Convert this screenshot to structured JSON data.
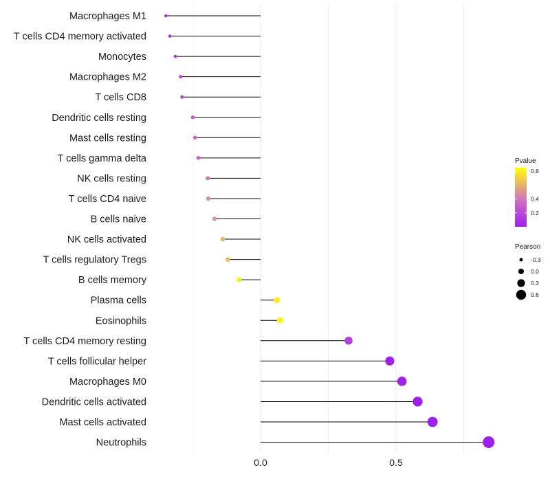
{
  "chart_data": {
    "type": "lollipop",
    "title": "",
    "xlabel": "",
    "ylabel": "",
    "xlim": [
      -0.5,
      0.85
    ],
    "x_ticks": [
      0.0,
      0.5
    ],
    "x_tick_labels": [
      "0.0",
      "0.5"
    ],
    "categories": [
      {
        "name": "Macrophages M1",
        "pearson": -0.35,
        "pvalue": 0.03
      },
      {
        "name": "T cells CD4 memory activated",
        "pearson": -0.335,
        "pvalue": 0.08
      },
      {
        "name": "Monocytes",
        "pearson": -0.315,
        "pvalue": 0.12
      },
      {
        "name": "Macrophages M2",
        "pearson": -0.295,
        "pvalue": 0.16
      },
      {
        "name": "T cells CD8",
        "pearson": -0.29,
        "pvalue": 0.19
      },
      {
        "name": "Dendritic cells resting",
        "pearson": -0.25,
        "pvalue": 0.3
      },
      {
        "name": "Mast cells resting",
        "pearson": -0.242,
        "pvalue": 0.31
      },
      {
        "name": "T cells gamma delta",
        "pearson": -0.23,
        "pvalue": 0.33
      },
      {
        "name": "NK cells resting",
        "pearson": -0.195,
        "pvalue": 0.42
      },
      {
        "name": "T cells CD4 naive",
        "pearson": -0.193,
        "pvalue": 0.45
      },
      {
        "name": "B cells naive",
        "pearson": -0.17,
        "pvalue": 0.5
      },
      {
        "name": "NK cells activated",
        "pearson": -0.14,
        "pvalue": 0.6
      },
      {
        "name": "T cells regulatory  Tregs",
        "pearson": -0.12,
        "pvalue": 0.65
      },
      {
        "name": "B cells memory",
        "pearson": -0.08,
        "pvalue": 0.8
      },
      {
        "name": "Plasma cells",
        "pearson": 0.06,
        "pvalue": 0.8
      },
      {
        "name": "Eosinophils",
        "pearson": 0.072,
        "pvalue": 0.82
      },
      {
        "name": "T cells CD4 memory resting",
        "pearson": 0.325,
        "pvalue": 0.15
      },
      {
        "name": "T cells follicular helper",
        "pearson": 0.477,
        "pvalue": 0.01
      },
      {
        "name": "Macrophages M0",
        "pearson": 0.522,
        "pvalue": 0.005
      },
      {
        "name": "Dendritic cells activated",
        "pearson": 0.58,
        "pvalue": 0.002
      },
      {
        "name": "Mast cells activated",
        "pearson": 0.635,
        "pvalue": 0.001
      },
      {
        "name": "Neutrophils",
        "pearson": 0.842,
        "pvalue": 0.0001
      }
    ],
    "color_legend": {
      "title": "Pvalue",
      "ticks": [
        0.8,
        0.4,
        0.2
      ],
      "tick_labels": [
        "0.8",
        "0.4",
        "0.2"
      ],
      "range": [
        0.0,
        0.85
      ],
      "low_color": "#a020f0",
      "mid_color": "#d070c0",
      "high_color": "#ffff00"
    },
    "size_legend": {
      "title": "Pearson",
      "items": [
        {
          "label": "-0.3",
          "value": -0.3
        },
        {
          "label": "0.0",
          "value": 0.0
        },
        {
          "label": "0.3",
          "value": 0.3
        },
        {
          "label": "0.6",
          "value": 0.6
        }
      ]
    },
    "grid": true,
    "segment_color": "#000000"
  }
}
